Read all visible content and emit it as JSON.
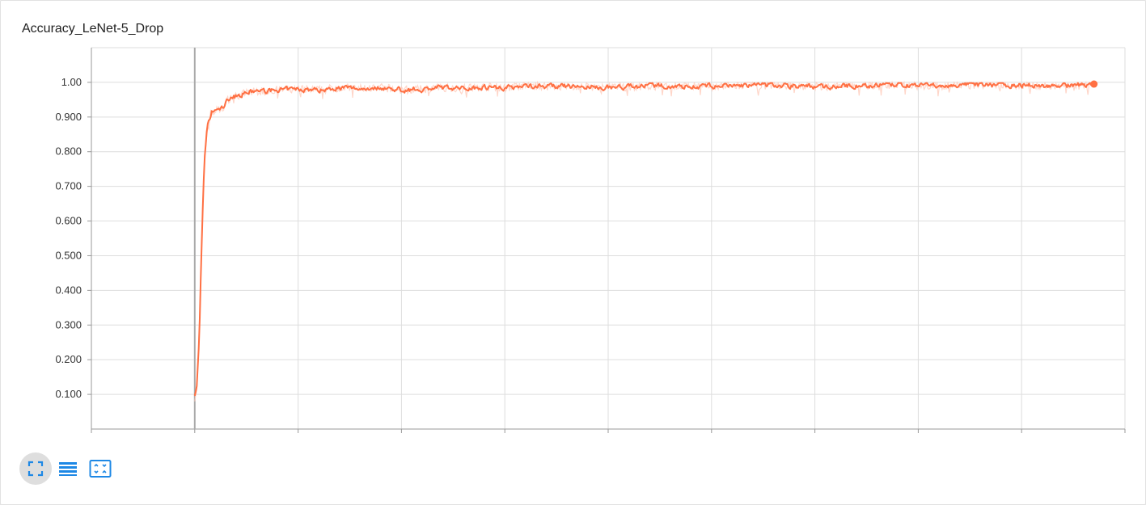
{
  "card": {
    "title": "Accuracy_LeNet-5_Drop"
  },
  "toolbar": {
    "buttons": [
      {
        "icon": "fit-domain-icon",
        "active": true
      },
      {
        "icon": "toggle-y-axis-log-icon",
        "active": false
      },
      {
        "icon": "expand-chart-icon",
        "active": false
      }
    ]
  },
  "colors": {
    "series": "#ff7043",
    "series_raw": "#ffccbc",
    "grid": "#dddddd",
    "axis": "#999999",
    "zero_line": "#aaaaaa",
    "icon": "#1e88e5"
  },
  "chart_data": {
    "type": "line",
    "title": "",
    "xlabel": "",
    "ylabel": "",
    "y_ticks": [
      "0.100",
      "0.200",
      "0.300",
      "0.400",
      "0.500",
      "0.600",
      "0.700",
      "0.800",
      "0.900",
      "1.00"
    ],
    "ylim": [
      0.0,
      1.1
    ],
    "xlim": [
      -0.5,
      4.5
    ],
    "grid": true,
    "x_tick_labels_shown": false,
    "series": [
      {
        "smoothed": true,
        "x": [
          0.0,
          0.01,
          0.02,
          0.03,
          0.04,
          0.05,
          0.06,
          0.07,
          0.08,
          0.1,
          0.12,
          0.14,
          0.16,
          0.18,
          0.2,
          0.25,
          0.3,
          0.35,
          0.4,
          0.5,
          0.6,
          0.7,
          0.8,
          0.9,
          1.0,
          1.1,
          1.2,
          1.3,
          1.4,
          1.5,
          1.6,
          1.8,
          2.0,
          2.2,
          2.4,
          2.6,
          2.8,
          3.0,
          3.2,
          3.4,
          3.6,
          3.8,
          4.0,
          4.2,
          4.35
        ],
        "values": [
          0.1,
          0.12,
          0.24,
          0.45,
          0.66,
          0.8,
          0.86,
          0.89,
          0.91,
          0.92,
          0.92,
          0.93,
          0.95,
          0.96,
          0.96,
          0.97,
          0.975,
          0.975,
          0.978,
          0.98,
          0.978,
          0.985,
          0.982,
          0.985,
          0.978,
          0.98,
          0.985,
          0.983,
          0.987,
          0.985,
          0.99,
          0.988,
          0.985,
          0.99,
          0.988,
          0.99,
          0.992,
          0.988,
          0.99,
          0.993,
          0.99,
          0.993,
          0.992,
          0.99,
          0.995
        ]
      }
    ]
  }
}
